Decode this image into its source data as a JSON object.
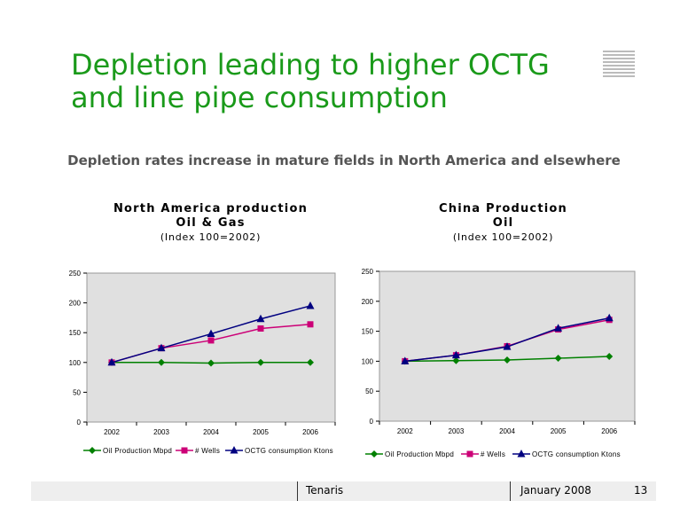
{
  "slide": {
    "title_line1": "Depletion leading to higher OCTG",
    "title_line2": "and line pipe consumption",
    "subtitle": "Depletion rates increase in mature fields in North America and elsewhere"
  },
  "colors": {
    "title_green": "#1a9a1a",
    "oil_production": "#008000",
    "wells": "#cc0077",
    "octg": "#000080"
  },
  "footer": {
    "company": "Tenaris",
    "date": "January 2008",
    "page": "13"
  },
  "chart_data": [
    {
      "type": "line",
      "title": [
        "North America production",
        "Oil & Gas"
      ],
      "subtitle": "(Index 100=2002)",
      "xlabel": "",
      "ylabel": "",
      "categories": [
        "2002",
        "2003",
        "2004",
        "2005",
        "2006"
      ],
      "ylim": [
        0,
        250
      ],
      "yticks": [
        "0",
        "50",
        "100",
        "150",
        "200",
        "250"
      ],
      "grid": false,
      "legend": "bottom",
      "series": [
        {
          "name": "Oil Production Mbpd",
          "marker": "diamond",
          "color": "#008000",
          "values": [
            100,
            100,
            99,
            100,
            100
          ]
        },
        {
          "name": "# Wells",
          "marker": "square",
          "color": "#cc0077",
          "values": [
            100,
            124,
            137,
            157,
            164
          ]
        },
        {
          "name": "OCTG consumption Ktons",
          "marker": "triangle",
          "color": "#000080",
          "values": [
            100,
            124,
            148,
            173,
            195
          ]
        }
      ]
    },
    {
      "type": "line",
      "title": [
        "China Production",
        "Oil"
      ],
      "subtitle": "(Index 100=2002)",
      "xlabel": "",
      "ylabel": "",
      "categories": [
        "2002",
        "2003",
        "2004",
        "2005",
        "2006"
      ],
      "ylim": [
        0,
        250
      ],
      "yticks": [
        "0",
        "50",
        "100",
        "150",
        "200",
        "250"
      ],
      "grid": false,
      "legend": "bottom",
      "series": [
        {
          "name": "Oil Production Mbpd",
          "marker": "diamond",
          "color": "#008000",
          "values": [
            100,
            101,
            102,
            105,
            108
          ]
        },
        {
          "name": "# Wells",
          "marker": "square",
          "color": "#cc0077",
          "values": [
            100,
            110,
            125,
            153,
            169
          ]
        },
        {
          "name": "OCTG consumption Ktons",
          "marker": "triangle",
          "color": "#000080",
          "values": [
            100,
            110,
            124,
            155,
            172
          ]
        }
      ]
    }
  ]
}
